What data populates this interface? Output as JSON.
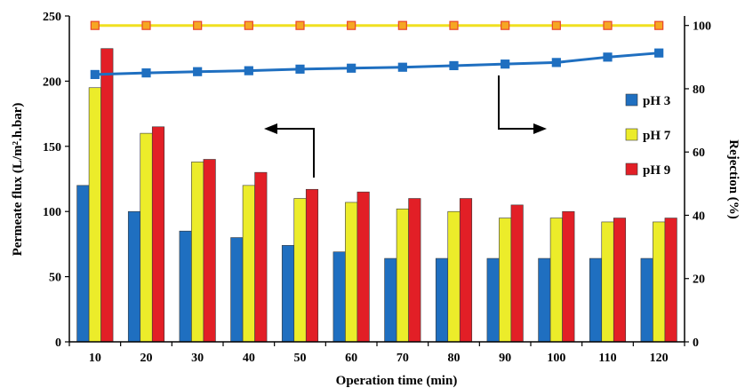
{
  "chart_data": {
    "type": "bar",
    "xlabel": "Operation time (min)",
    "ylabel": "Permeate flux  (L/m².h.bar)",
    "y2label": "Rejection (%)",
    "categories": [
      "10",
      "20",
      "30",
      "40",
      "50",
      "60",
      "70",
      "80",
      "90",
      "100",
      "110",
      "120"
    ],
    "ylim": [
      0,
      250
    ],
    "yticks": [
      0,
      50,
      100,
      150,
      200,
      250
    ],
    "y2lim": [
      0,
      103
    ],
    "y2ticks": [
      0,
      20,
      40,
      60,
      80,
      100
    ],
    "grid": false,
    "legend_position": "right",
    "series": [
      {
        "name": "pH 3",
        "color": "#1f6fc0",
        "values": [
          120,
          100,
          85,
          80,
          74,
          69,
          64,
          64,
          64,
          64,
          64,
          64
        ]
      },
      {
        "name": "pH 7",
        "color": "#ecec2a",
        "values": [
          195,
          160,
          138,
          120,
          110,
          107,
          102,
          100,
          95,
          95,
          92,
          92
        ]
      },
      {
        "name": "pH 9",
        "color": "#e21f26",
        "values": [
          225,
          165,
          140,
          130,
          117,
          115,
          110,
          110,
          105,
          100,
          95,
          95
        ]
      }
    ],
    "lines": [
      {
        "axis": "right",
        "color": "#1f6fc0",
        "marker": "square",
        "values": [
          84.5,
          85.0,
          85.4,
          85.7,
          86.2,
          86.5,
          86.8,
          87.3,
          87.8,
          88.3,
          90.0,
          91.3
        ]
      },
      {
        "axis": "right",
        "color": "#f0e020",
        "marker": "square",
        "marker_fill": "#f6a623",
        "marker_edge": "#e8452a",
        "values": [
          100,
          100,
          100,
          100,
          100,
          100,
          100,
          100,
          100,
          100,
          100,
          100
        ]
      }
    ]
  }
}
